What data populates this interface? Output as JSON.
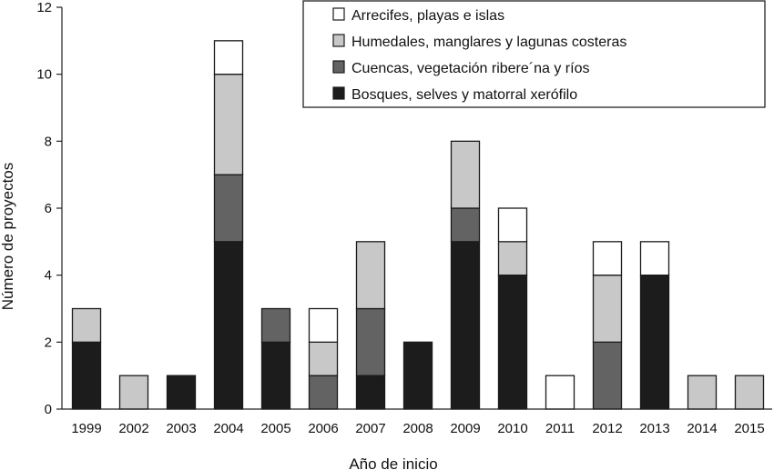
{
  "chart_data": {
    "type": "bar",
    "stacked": true,
    "xlabel": "Año de inicio",
    "ylabel": "Número de proyectos",
    "ylim": [
      0,
      12
    ],
    "yticks": [
      0,
      2,
      4,
      6,
      8,
      10,
      12
    ],
    "categories": [
      "1999",
      "2002",
      "2003",
      "2004",
      "2005",
      "2006",
      "2007",
      "2008",
      "2009",
      "2010",
      "2011",
      "2012",
      "2013",
      "2014",
      "2015"
    ],
    "series": [
      {
        "name": "Bosques, selves y matorral xerófilo",
        "color": "#1c1c1c",
        "values": [
          2,
          0,
          1,
          5,
          2,
          0,
          1,
          2,
          5,
          4,
          0,
          0,
          4,
          0,
          0
        ]
      },
      {
        "name": "Cuencas, vegetación ribere´na y ríos",
        "color": "#636363",
        "values": [
          0,
          0,
          0,
          2,
          1,
          1,
          2,
          0,
          1,
          0,
          0,
          2,
          0,
          0,
          0
        ]
      },
      {
        "name": "Humedales, manglares y lagunas costeras",
        "color": "#c8c8c8",
        "values": [
          1,
          1,
          0,
          3,
          0,
          1,
          2,
          0,
          2,
          1,
          0,
          2,
          0,
          1,
          1
        ]
      },
      {
        "name": "Arrecifes, playas e islas",
        "color": "#ffffff",
        "values": [
          0,
          0,
          0,
          1,
          0,
          1,
          0,
          0,
          0,
          1,
          1,
          1,
          1,
          0,
          0
        ]
      }
    ],
    "legend_order": [
      3,
      2,
      1,
      0
    ],
    "legend_position": "top-right"
  }
}
